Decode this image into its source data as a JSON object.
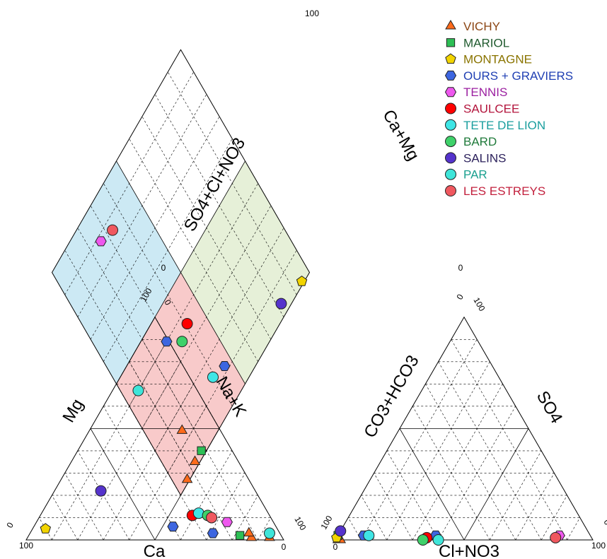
{
  "chart_data": {
    "type": "scatter",
    "subtype": "piper-diagram",
    "title": "",
    "axes": {
      "cation_left": "Mg",
      "cation_right": "Na+K",
      "cation_bottom": "Ca",
      "anion_left": "CO3+HCO3",
      "anion_right": "SO4",
      "anion_bottom": "Cl+NO3",
      "diamond_upper_left": "SO4+Cl+NO3",
      "diamond_upper_right": "Ca+Mg"
    },
    "tick_labels": {
      "zero": "0",
      "hundred": "100"
    },
    "range": [
      0,
      100
    ],
    "grid": "dashed every 10%, solid at 50%",
    "legend_position": "top-right",
    "zone_colors": {
      "upper_left": "#cce9f4",
      "upper_right": "#e6f0d8",
      "lower": "#f8caca"
    },
    "series": [
      {
        "name": "VICHY",
        "marker": "triangle",
        "color": "#ff6a1a",
        "text_color": "#8b4513",
        "points": [
          {
            "Ca": 5,
            "Mg": 1,
            "Na_K": 94,
            "HCO3": 99,
            "SO4": 0,
            "Cl_NO3": 1
          },
          {
            "Ca": 12,
            "Mg": 1,
            "Na_K": 87,
            "HCO3": 98,
            "SO4": 0,
            "Cl_NO3": 2
          },
          {
            "Ca": 12,
            "Mg": 3,
            "Na_K": 85,
            "HCO3": 86,
            "SO4": 2,
            "Cl_NO3": 12
          }
        ]
      },
      {
        "name": "MARIOL",
        "marker": "square",
        "color": "#2dbf55",
        "text_color": "#1f5a2e",
        "points": [
          {
            "Ca": 16,
            "Mg": 2,
            "Na_K": 82,
            "HCO3": 98,
            "SO4": 2,
            "Cl_NO3": 0
          }
        ]
      },
      {
        "name": "MONTAGNE",
        "marker": "pentagon",
        "color": "#f2d400",
        "text_color": "#8a7400",
        "points": [
          {
            "Ca": 90,
            "Mg": 5,
            "Na_K": 5,
            "HCO3": 99,
            "SO4": 1,
            "Cl_NO3": 0
          }
        ]
      },
      {
        "name": "OURS + GRAVIERS",
        "marker": "hexagon",
        "color": "#3d66e0",
        "text_color": "#1f3fb3",
        "points": [
          {
            "Ca": 40,
            "Mg": 6,
            "Na_K": 54,
            "HCO3": 88,
            "SO4": 2,
            "Cl_NO3": 10
          },
          {
            "Ca": 26,
            "Mg": 3,
            "Na_K": 71,
            "HCO3": 60,
            "SO4": 2,
            "Cl_NO3": 38
          }
        ]
      },
      {
        "name": "TENNIS",
        "marker": "hexagon",
        "color": "#ee58ee",
        "text_color": "#9b1fa0",
        "points": [
          {
            "Ca": 18,
            "Mg": 8,
            "Na_K": 74,
            "HCO3": 12,
            "SO4": 2,
            "Cl_NO3": 86
          }
        ]
      },
      {
        "name": "SAULCEE",
        "marker": "circle",
        "color": "#ff0000",
        "text_color": "#b3143c",
        "points": [
          {
            "Ca": 30,
            "Mg": 11,
            "Na_K": 59,
            "HCO3": 64,
            "SO4": 1,
            "Cl_NO3": 35
          }
        ]
      },
      {
        "name": "TETE DE LION",
        "marker": "circle",
        "color": "#3fe5e5",
        "text_color": "#1a9e9e",
        "points": [
          {
            "Ca": 27,
            "Mg": 12,
            "Na_K": 61,
            "HCO3": 86,
            "SO4": 2,
            "Cl_NO3": 12
          }
        ]
      },
      {
        "name": "BARD",
        "marker": "circle",
        "color": "#3fd16a",
        "text_color": "#1f7a3a",
        "points": [
          {
            "Ca": 24,
            "Mg": 11,
            "Na_K": 65,
            "HCO3": 66,
            "SO4": 0,
            "Cl_NO3": 34
          }
        ]
      },
      {
        "name": "SALINS",
        "marker": "circle",
        "color": "#5533cc",
        "text_color": "#2a1f5a",
        "points": [
          {
            "Ca": 60,
            "Mg": 22,
            "Na_K": 18,
            "HCO3": 96,
            "SO4": 4,
            "Cl_NO3": 0
          }
        ]
      },
      {
        "name": "PAR",
        "marker": "circle",
        "color": "#3fe5d9",
        "text_color": "#1aa08f",
        "points": [
          {
            "Ca": 4,
            "Mg": 3,
            "Na_K": 93,
            "HCO3": 60,
            "SO4": 0,
            "Cl_NO3": 40
          }
        ]
      },
      {
        "name": "LES ESTREYS",
        "marker": "circle",
        "color": "#f0585f",
        "text_color": "#c21f3c",
        "points": [
          {
            "Ca": 23,
            "Mg": 10,
            "Na_K": 67,
            "HCO3": 14,
            "SO4": 1,
            "Cl_NO3": 85
          }
        ]
      }
    ]
  }
}
